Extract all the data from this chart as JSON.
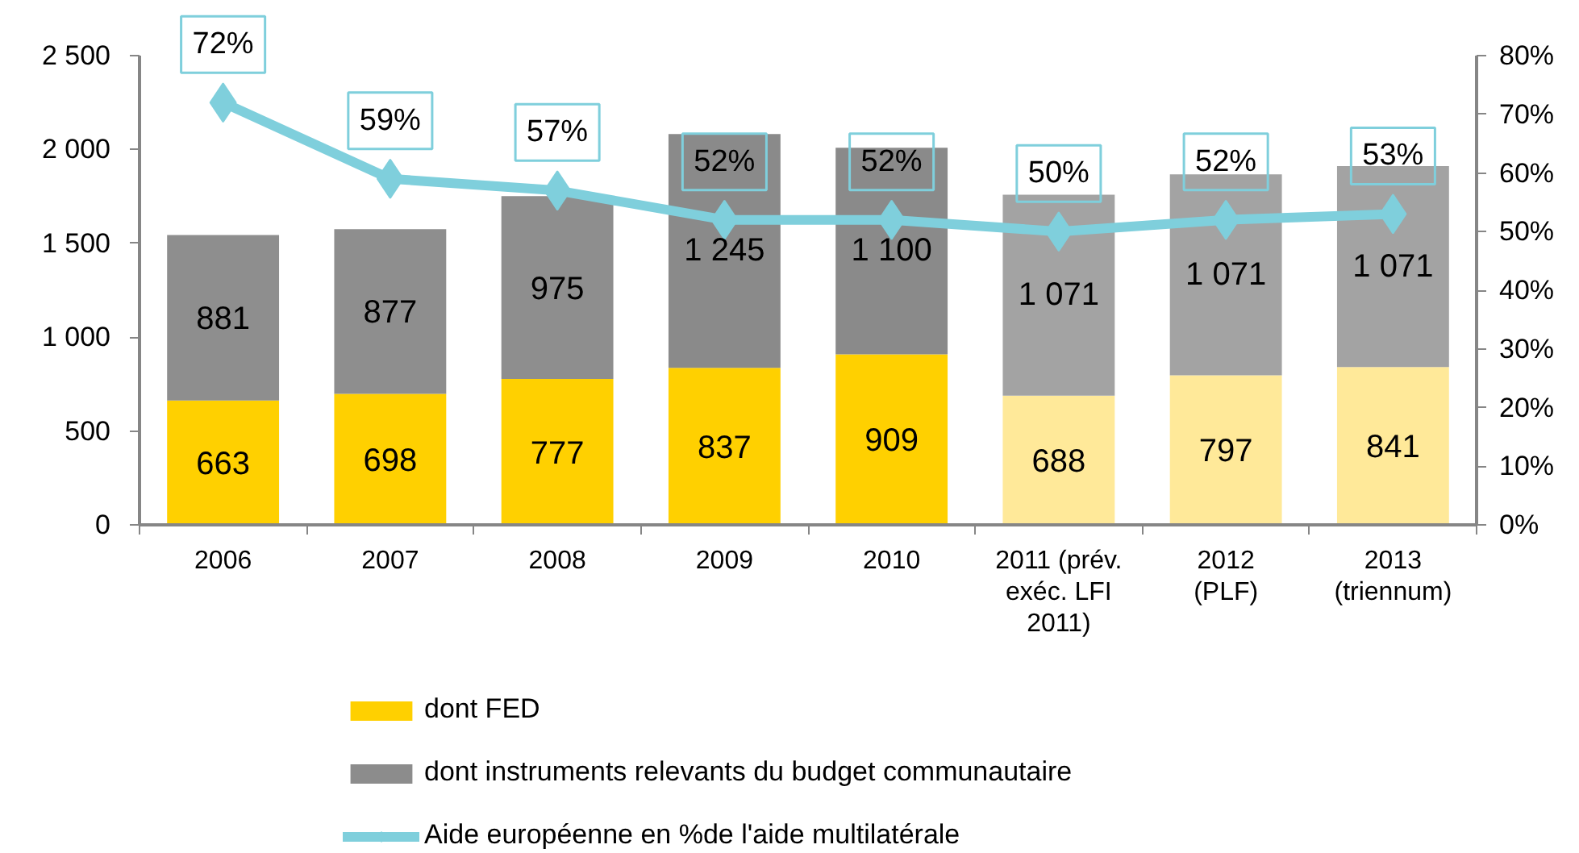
{
  "chart_data": {
    "type": "bar",
    "stacked": true,
    "categories": [
      "2006",
      "2007",
      "2008",
      "2009",
      "2010",
      "2011 (prév.\nexéc. LFI\n2011)",
      "2012\n(PLF)",
      "2013\n(triennum)"
    ],
    "series": [
      {
        "name": "dont FED",
        "color": "#ffd000",
        "colors": [
          "#ffd000",
          "#ffd000",
          "#ffd000",
          "#ffd000",
          "#ffd000",
          "#ffe999",
          "#ffe999",
          "#ffe999"
        ],
        "values": [
          663,
          698,
          777,
          837,
          909,
          688,
          797,
          841
        ],
        "value_labels": [
          "663",
          "698",
          "777",
          "837",
          "909",
          "688",
          "797",
          "841"
        ]
      },
      {
        "name": "dont instruments relevants du budget communautaire",
        "color": "#8c8c8c",
        "colors": [
          "#8e8e8e",
          "#8e8e8e",
          "#8e8e8e",
          "#8a8a8a",
          "#8a8a8a",
          "#a3a3a3",
          "#a3a3a3",
          "#a3a3a3"
        ],
        "values": [
          881,
          877,
          975,
          1245,
          1100,
          1071,
          1071,
          1071
        ],
        "value_labels": [
          "881",
          "877",
          "975",
          "1 245",
          "1 100",
          "1 071",
          "1 071",
          "1 071"
        ]
      },
      {
        "name": "Aide européenne en %de l'aide multilatérale",
        "type": "line",
        "axis": "y2",
        "color": "#7fcfdc",
        "marker": "diamond",
        "values": [
          72,
          59,
          57,
          52,
          52,
          50,
          52,
          53
        ],
        "value_labels": [
          "72%",
          "59%",
          "57%",
          "52%",
          "52%",
          "50%",
          "52%",
          "53%"
        ]
      }
    ],
    "ylim": [
      0,
      2500
    ],
    "yticks": [
      0,
      500,
      {
        "value": 1000,
        "label": "1 000"
      },
      {
        "value": 1500,
        "label": "1 500"
      },
      {
        "value": 2000,
        "label": "2 000"
      },
      {
        "value": 2500,
        "label": "2 500"
      }
    ],
    "y2lim": [
      0,
      80
    ],
    "y2ticks": [
      {
        "value": 0,
        "label": "0%"
      },
      {
        "value": 10,
        "label": "10%"
      },
      {
        "value": 20,
        "label": "20%"
      },
      {
        "value": 30,
        "label": "30%"
      },
      {
        "value": 40,
        "label": "40%"
      },
      {
        "value": 50,
        "label": "50%"
      },
      {
        "value": 60,
        "label": "60%"
      },
      {
        "value": 70,
        "label": "70%"
      },
      {
        "value": 80,
        "label": "80%"
      }
    ],
    "grid": false,
    "legend": "bottom"
  }
}
